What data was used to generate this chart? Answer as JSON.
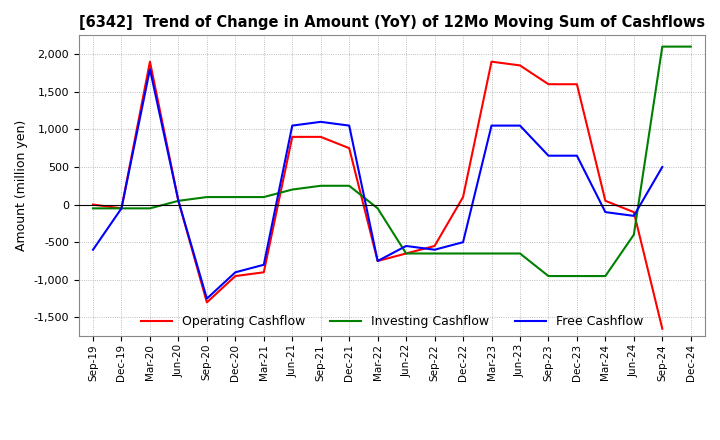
{
  "title": "[6342]  Trend of Change in Amount (YoY) of 12Mo Moving Sum of Cashflows",
  "ylabel": "Amount (million yen)",
  "ylim": [
    -1750,
    2250
  ],
  "yticks": [
    -1500,
    -1000,
    -500,
    0,
    500,
    1000,
    1500,
    2000
  ],
  "x_labels": [
    "Sep-19",
    "Dec-19",
    "Mar-20",
    "Jun-20",
    "Sep-20",
    "Dec-20",
    "Mar-21",
    "Jun-21",
    "Sep-21",
    "Dec-21",
    "Mar-22",
    "Jun-22",
    "Sep-22",
    "Dec-22",
    "Mar-23",
    "Jun-23",
    "Sep-23",
    "Dec-23",
    "Mar-24",
    "Jun-24",
    "Sep-24",
    "Dec-24"
  ],
  "operating": [
    0,
    -50,
    1900,
    50,
    -1300,
    -950,
    -900,
    900,
    900,
    750,
    -750,
    -650,
    -550,
    100,
    1900,
    1850,
    1600,
    1600,
    50,
    -100,
    -1650,
    null
  ],
  "investing": [
    -50,
    -50,
    -50,
    50,
    100,
    100,
    100,
    200,
    250,
    250,
    -50,
    -650,
    -650,
    -650,
    -650,
    -650,
    -950,
    -950,
    -950,
    -400,
    2100,
    2100
  ],
  "free": [
    -600,
    -50,
    1800,
    50,
    -1250,
    -900,
    -800,
    1050,
    1100,
    1050,
    -750,
    -550,
    -600,
    -500,
    1050,
    1050,
    650,
    650,
    -100,
    -150,
    500,
    null
  ],
  "operating_color": "#ff0000",
  "investing_color": "#008000",
  "free_color": "#0000ff",
  "legend_labels": [
    "Operating Cashflow",
    "Investing Cashflow",
    "Free Cashflow"
  ],
  "bg_color": "#ffffff",
  "grid_color": "#aaaaaa"
}
